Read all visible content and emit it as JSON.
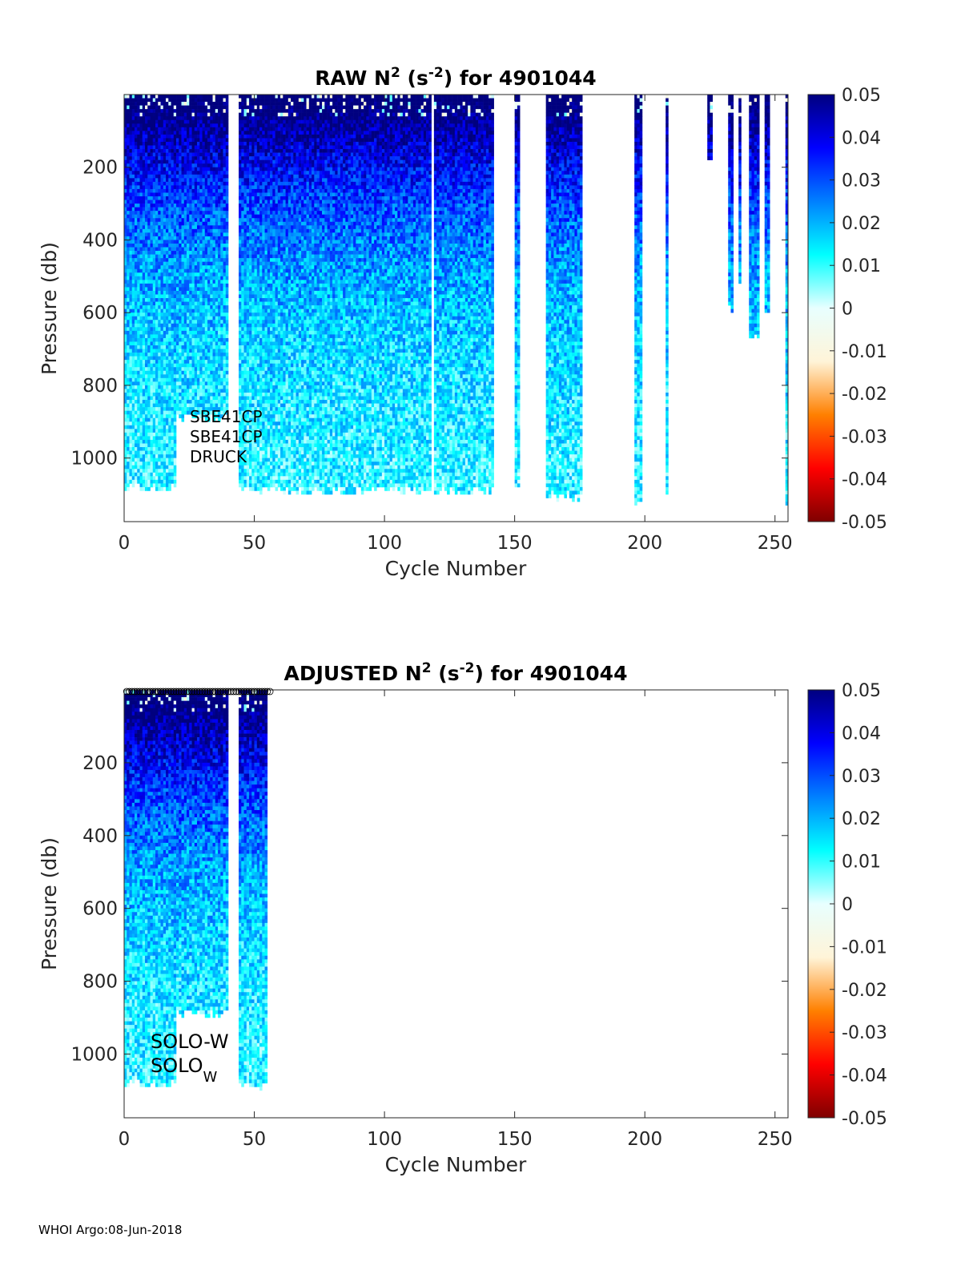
{
  "footer": "WHOI Argo:08-Jun-2018",
  "colors": {
    "colormap_stops": [
      "#7f0000",
      "#ff0000",
      "#ff8000",
      "#fff4d8",
      "#e8ffff",
      "#00ffff",
      "#0080ff",
      "#0000ff",
      "#00007f"
    ],
    "axis": "#262626"
  },
  "chart_data": [
    {
      "type": "heatmap",
      "title_prefix": "RAW N",
      "title_sup1": "2",
      "title_mid": " (s",
      "title_sup2": "-2",
      "title_suffix": ") for 4901044",
      "xlabel": "Cycle Number",
      "ylabel": "Pressure (db)",
      "xlim": [
        0,
        255
      ],
      "ylim": [
        0,
        1175
      ],
      "y_reversed": true,
      "xticks": [
        0,
        50,
        100,
        150,
        200,
        250
      ],
      "yticks": [
        200,
        400,
        600,
        800,
        1000
      ],
      "colorbar": {
        "range": [
          -0.05,
          0.05
        ],
        "ticks": [
          "0.05",
          "0.04",
          "0.03",
          "0.02",
          "0.01",
          "0",
          "-0.01",
          "-0.02",
          "-0.03",
          "-0.04",
          "-0.05"
        ]
      },
      "annotations": [
        "SBE41CP",
        "SBE41CP",
        "DRUCK"
      ],
      "profile_segments": [
        {
          "from": 0,
          "to": 20,
          "max_pressure": 1090
        },
        {
          "from": 20,
          "to": 40,
          "max_pressure": 900
        },
        {
          "from": 44,
          "to": 55,
          "max_pressure": 1100
        },
        {
          "from": 55,
          "to": 118,
          "max_pressure": 1100
        },
        {
          "from": 119,
          "to": 142,
          "max_pressure": 1100
        },
        {
          "from": 150,
          "to": 152,
          "max_pressure": 1080
        },
        {
          "from": 162,
          "to": 176,
          "max_pressure": 1120
        },
        {
          "from": 196,
          "to": 199,
          "max_pressure": 1130
        },
        {
          "from": 208,
          "to": 209,
          "max_pressure": 1120
        },
        {
          "from": 224,
          "to": 226,
          "max_pressure": 200
        },
        {
          "from": 232,
          "to": 234,
          "max_pressure": 600
        },
        {
          "from": 236,
          "to": 237,
          "max_pressure": 540
        },
        {
          "from": 240,
          "to": 244,
          "max_pressure": 680
        },
        {
          "from": 246,
          "to": 248,
          "max_pressure": 620
        },
        {
          "from": 254,
          "to": 255,
          "max_pressure": 1140
        }
      ]
    },
    {
      "type": "heatmap",
      "title_prefix": "ADJUSTED N",
      "title_sup1": "2",
      "title_mid": " (s",
      "title_sup2": "-2",
      "title_suffix": ") for 4901044",
      "xlabel": "Cycle Number",
      "ylabel": "Pressure (db)",
      "xlim": [
        0,
        255
      ],
      "ylim": [
        0,
        1175
      ],
      "y_reversed": true,
      "xticks": [
        0,
        50,
        100,
        150,
        200,
        250
      ],
      "yticks": [
        200,
        400,
        600,
        800,
        1000
      ],
      "colorbar": {
        "range": [
          -0.05,
          0.05
        ],
        "ticks": [
          "0.05",
          "0.04",
          "0.03",
          "0.02",
          "0.01",
          "0",
          "-0.01",
          "-0.02",
          "-0.03",
          "-0.04",
          "-0.05"
        ]
      },
      "annotations": [
        "SOLO-W",
        "SOLO",
        "W"
      ],
      "profile_segments": [
        {
          "from": 0,
          "to": 20,
          "max_pressure": 1090
        },
        {
          "from": 20,
          "to": 40,
          "max_pressure": 900
        },
        {
          "from": 44,
          "to": 55,
          "max_pressure": 1100
        }
      ],
      "surface_markers": {
        "from": 1,
        "to": 56
      }
    }
  ]
}
